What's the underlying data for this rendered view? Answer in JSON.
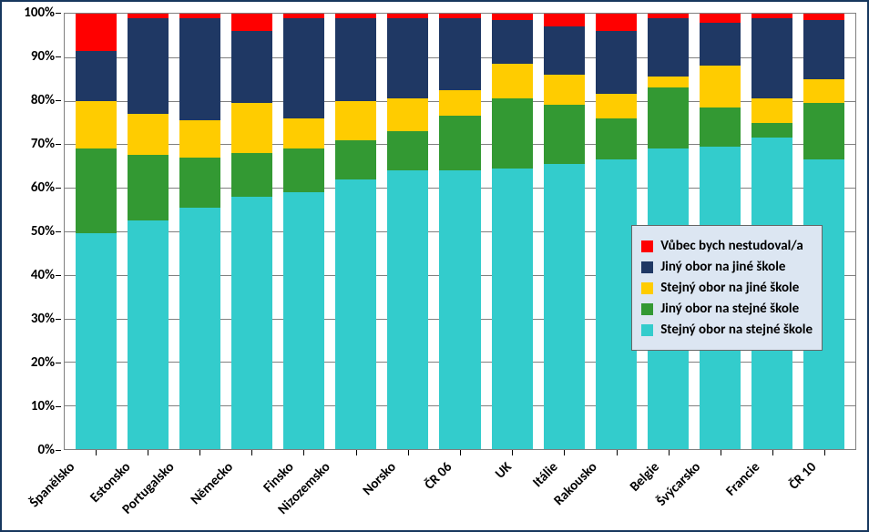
{
  "chart": {
    "type": "stacked-bar-percent",
    "border_color": "#17375e",
    "plot_background": "#ffffff",
    "legend_background": "#dce6f2",
    "grid_color": "#808080",
    "axis_font_size": 15,
    "axis_font_weight": "bold",
    "ylim": [
      0,
      100
    ],
    "ytick_step": 10,
    "y_ticks": [
      "0%",
      "10%",
      "20%",
      "30%",
      "40%",
      "50%",
      "60%",
      "70%",
      "80%",
      "90%",
      "100%"
    ],
    "series": [
      {
        "key": "s1",
        "label": "Stejný obor na stejné škole",
        "color": "#33cccc"
      },
      {
        "key": "s2",
        "label": "Jiný obor na stejné škole",
        "color": "#339933"
      },
      {
        "key": "s3",
        "label": "Stejný obor na jiné škole",
        "color": "#ffcc00"
      },
      {
        "key": "s4",
        "label": "Jiný obor na jiné škole",
        "color": "#1f3864"
      },
      {
        "key": "s5",
        "label": "Vůbec bych nestudoval/a",
        "color": "#ff0000"
      }
    ],
    "categories": [
      {
        "label": "Španělsko",
        "values": {
          "s1": 49.5,
          "s2": 19.5,
          "s3": 11.0,
          "s4": 11.5,
          "s5": 8.5
        }
      },
      {
        "label": "Estonsko",
        "values": {
          "s1": 52.5,
          "s2": 15.0,
          "s3": 9.5,
          "s4": 22.0,
          "s5": 1.0
        }
      },
      {
        "label": "Portugalsko",
        "values": {
          "s1": 55.5,
          "s2": 11.5,
          "s3": 8.5,
          "s4": 23.5,
          "s5": 1.0
        }
      },
      {
        "label": "Německo",
        "values": {
          "s1": 58.0,
          "s2": 10.0,
          "s3": 11.5,
          "s4": 16.5,
          "s5": 4.0
        }
      },
      {
        "label": "Finsko",
        "values": {
          "s1": 59.0,
          "s2": 10.0,
          "s3": 7.0,
          "s4": 23.0,
          "s5": 1.0
        }
      },
      {
        "label": "Nizozemsko",
        "values": {
          "s1": 62.0,
          "s2": 9.0,
          "s3": 9.0,
          "s4": 19.0,
          "s5": 1.0
        }
      },
      {
        "label": "Norsko",
        "values": {
          "s1": 64.0,
          "s2": 9.0,
          "s3": 7.5,
          "s4": 18.5,
          "s5": 1.0
        }
      },
      {
        "label": "ČR 06",
        "values": {
          "s1": 64.0,
          "s2": 12.5,
          "s3": 6.0,
          "s4": 16.5,
          "s5": 1.0
        }
      },
      {
        "label": "UK",
        "values": {
          "s1": 64.5,
          "s2": 16.0,
          "s3": 8.0,
          "s4": 10.0,
          "s5": 1.5
        }
      },
      {
        "label": "Itálie",
        "values": {
          "s1": 65.5,
          "s2": 13.5,
          "s3": 7.0,
          "s4": 11.0,
          "s5": 3.0
        }
      },
      {
        "label": "Rakousko",
        "values": {
          "s1": 66.5,
          "s2": 9.5,
          "s3": 5.5,
          "s4": 14.5,
          "s5": 4.0
        }
      },
      {
        "label": "Belgie",
        "values": {
          "s1": 69.0,
          "s2": 14.0,
          "s3": 2.5,
          "s4": 13.5,
          "s5": 1.0
        }
      },
      {
        "label": "Švýcarsko",
        "values": {
          "s1": 69.5,
          "s2": 9.0,
          "s3": 9.5,
          "s4": 10.0,
          "s5": 2.0
        }
      },
      {
        "label": "Francie",
        "values": {
          "s1": 71.5,
          "s2": 3.5,
          "s3": 5.5,
          "s4": 18.5,
          "s5": 1.0
        }
      },
      {
        "label": "ČR 10",
        "values": {
          "s1": 66.5,
          "s2": 13.0,
          "s3": 5.5,
          "s4": 13.5,
          "s5": 1.5
        }
      }
    ]
  }
}
